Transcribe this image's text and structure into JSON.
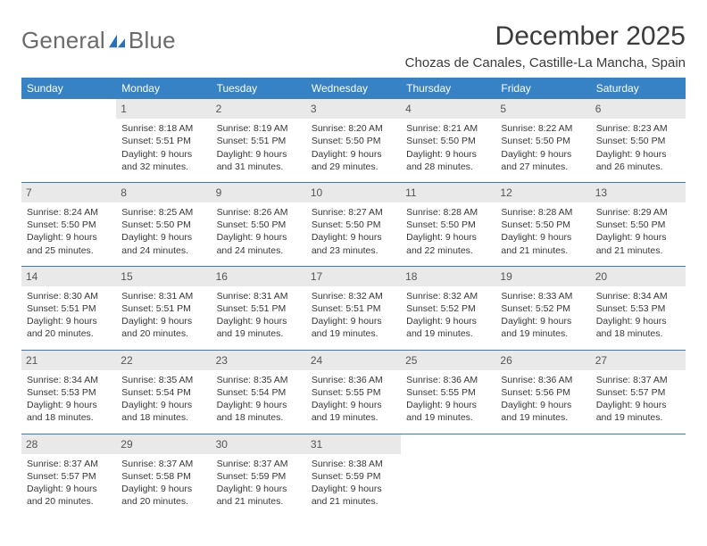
{
  "logo": {
    "word1": "General",
    "word2": "Blue"
  },
  "title": "December 2025",
  "subtitle": "Chozas de Canales, Castille-La Mancha, Spain",
  "day_headers": [
    "Sunday",
    "Monday",
    "Tuesday",
    "Wednesday",
    "Thursday",
    "Friday",
    "Saturday"
  ],
  "colors": {
    "header_bg": "#3682c4",
    "header_text": "#ffffff",
    "daynum_bg": "#e9e9e9",
    "rule": "#3f79ad",
    "logo_gray": "#6b6b6b",
    "logo_blue": "#2873b8"
  },
  "weeks": [
    [
      {
        "n": "",
        "sunrise": "",
        "sunset": "",
        "daylight": ""
      },
      {
        "n": "1",
        "sunrise": "Sunrise: 8:18 AM",
        "sunset": "Sunset: 5:51 PM",
        "daylight": "Daylight: 9 hours and 32 minutes."
      },
      {
        "n": "2",
        "sunrise": "Sunrise: 8:19 AM",
        "sunset": "Sunset: 5:51 PM",
        "daylight": "Daylight: 9 hours and 31 minutes."
      },
      {
        "n": "3",
        "sunrise": "Sunrise: 8:20 AM",
        "sunset": "Sunset: 5:50 PM",
        "daylight": "Daylight: 9 hours and 29 minutes."
      },
      {
        "n": "4",
        "sunrise": "Sunrise: 8:21 AM",
        "sunset": "Sunset: 5:50 PM",
        "daylight": "Daylight: 9 hours and 28 minutes."
      },
      {
        "n": "5",
        "sunrise": "Sunrise: 8:22 AM",
        "sunset": "Sunset: 5:50 PM",
        "daylight": "Daylight: 9 hours and 27 minutes."
      },
      {
        "n": "6",
        "sunrise": "Sunrise: 8:23 AM",
        "sunset": "Sunset: 5:50 PM",
        "daylight": "Daylight: 9 hours and 26 minutes."
      }
    ],
    [
      {
        "n": "7",
        "sunrise": "Sunrise: 8:24 AM",
        "sunset": "Sunset: 5:50 PM",
        "daylight": "Daylight: 9 hours and 25 minutes."
      },
      {
        "n": "8",
        "sunrise": "Sunrise: 8:25 AM",
        "sunset": "Sunset: 5:50 PM",
        "daylight": "Daylight: 9 hours and 24 minutes."
      },
      {
        "n": "9",
        "sunrise": "Sunrise: 8:26 AM",
        "sunset": "Sunset: 5:50 PM",
        "daylight": "Daylight: 9 hours and 24 minutes."
      },
      {
        "n": "10",
        "sunrise": "Sunrise: 8:27 AM",
        "sunset": "Sunset: 5:50 PM",
        "daylight": "Daylight: 9 hours and 23 minutes."
      },
      {
        "n": "11",
        "sunrise": "Sunrise: 8:28 AM",
        "sunset": "Sunset: 5:50 PM",
        "daylight": "Daylight: 9 hours and 22 minutes."
      },
      {
        "n": "12",
        "sunrise": "Sunrise: 8:28 AM",
        "sunset": "Sunset: 5:50 PM",
        "daylight": "Daylight: 9 hours and 21 minutes."
      },
      {
        "n": "13",
        "sunrise": "Sunrise: 8:29 AM",
        "sunset": "Sunset: 5:50 PM",
        "daylight": "Daylight: 9 hours and 21 minutes."
      }
    ],
    [
      {
        "n": "14",
        "sunrise": "Sunrise: 8:30 AM",
        "sunset": "Sunset: 5:51 PM",
        "daylight": "Daylight: 9 hours and 20 minutes."
      },
      {
        "n": "15",
        "sunrise": "Sunrise: 8:31 AM",
        "sunset": "Sunset: 5:51 PM",
        "daylight": "Daylight: 9 hours and 20 minutes."
      },
      {
        "n": "16",
        "sunrise": "Sunrise: 8:31 AM",
        "sunset": "Sunset: 5:51 PM",
        "daylight": "Daylight: 9 hours and 19 minutes."
      },
      {
        "n": "17",
        "sunrise": "Sunrise: 8:32 AM",
        "sunset": "Sunset: 5:51 PM",
        "daylight": "Daylight: 9 hours and 19 minutes."
      },
      {
        "n": "18",
        "sunrise": "Sunrise: 8:32 AM",
        "sunset": "Sunset: 5:52 PM",
        "daylight": "Daylight: 9 hours and 19 minutes."
      },
      {
        "n": "19",
        "sunrise": "Sunrise: 8:33 AM",
        "sunset": "Sunset: 5:52 PM",
        "daylight": "Daylight: 9 hours and 19 minutes."
      },
      {
        "n": "20",
        "sunrise": "Sunrise: 8:34 AM",
        "sunset": "Sunset: 5:53 PM",
        "daylight": "Daylight: 9 hours and 18 minutes."
      }
    ],
    [
      {
        "n": "21",
        "sunrise": "Sunrise: 8:34 AM",
        "sunset": "Sunset: 5:53 PM",
        "daylight": "Daylight: 9 hours and 18 minutes."
      },
      {
        "n": "22",
        "sunrise": "Sunrise: 8:35 AM",
        "sunset": "Sunset: 5:54 PM",
        "daylight": "Daylight: 9 hours and 18 minutes."
      },
      {
        "n": "23",
        "sunrise": "Sunrise: 8:35 AM",
        "sunset": "Sunset: 5:54 PM",
        "daylight": "Daylight: 9 hours and 18 minutes."
      },
      {
        "n": "24",
        "sunrise": "Sunrise: 8:36 AM",
        "sunset": "Sunset: 5:55 PM",
        "daylight": "Daylight: 9 hours and 19 minutes."
      },
      {
        "n": "25",
        "sunrise": "Sunrise: 8:36 AM",
        "sunset": "Sunset: 5:55 PM",
        "daylight": "Daylight: 9 hours and 19 minutes."
      },
      {
        "n": "26",
        "sunrise": "Sunrise: 8:36 AM",
        "sunset": "Sunset: 5:56 PM",
        "daylight": "Daylight: 9 hours and 19 minutes."
      },
      {
        "n": "27",
        "sunrise": "Sunrise: 8:37 AM",
        "sunset": "Sunset: 5:57 PM",
        "daylight": "Daylight: 9 hours and 19 minutes."
      }
    ],
    [
      {
        "n": "28",
        "sunrise": "Sunrise: 8:37 AM",
        "sunset": "Sunset: 5:57 PM",
        "daylight": "Daylight: 9 hours and 20 minutes."
      },
      {
        "n": "29",
        "sunrise": "Sunrise: 8:37 AM",
        "sunset": "Sunset: 5:58 PM",
        "daylight": "Daylight: 9 hours and 20 minutes."
      },
      {
        "n": "30",
        "sunrise": "Sunrise: 8:37 AM",
        "sunset": "Sunset: 5:59 PM",
        "daylight": "Daylight: 9 hours and 21 minutes."
      },
      {
        "n": "31",
        "sunrise": "Sunrise: 8:38 AM",
        "sunset": "Sunset: 5:59 PM",
        "daylight": "Daylight: 9 hours and 21 minutes."
      },
      {
        "n": "",
        "sunrise": "",
        "sunset": "",
        "daylight": ""
      },
      {
        "n": "",
        "sunrise": "",
        "sunset": "",
        "daylight": ""
      },
      {
        "n": "",
        "sunrise": "",
        "sunset": "",
        "daylight": ""
      }
    ]
  ]
}
